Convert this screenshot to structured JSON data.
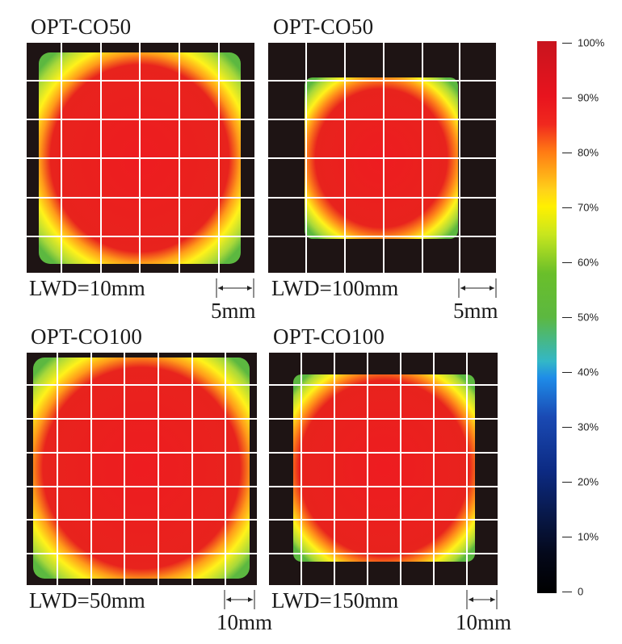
{
  "panels": [
    {
      "title": "OPT-CO50",
      "lwd": "LWD=10mm",
      "scale": "5mm"
    },
    {
      "title": "OPT-CO50",
      "lwd": "LWD=100mm",
      "scale": "5mm"
    },
    {
      "title": "OPT-CO100",
      "lwd": "LWD=50mm",
      "scale": "10mm"
    },
    {
      "title": "OPT-CO100",
      "lwd": "LWD=150mm",
      "scale": "10mm"
    }
  ],
  "colorbar": {
    "ticks": [
      "100%",
      "90%",
      "80%",
      "70%",
      "60%",
      "50%",
      "40%",
      "30%",
      "20%",
      "10%",
      "0"
    ]
  },
  "colors": {
    "background": "#1e1414",
    "hot": "#e8141e",
    "warm": "#fff000",
    "edge": "#5cb840",
    "grid": "#ffffff"
  }
}
